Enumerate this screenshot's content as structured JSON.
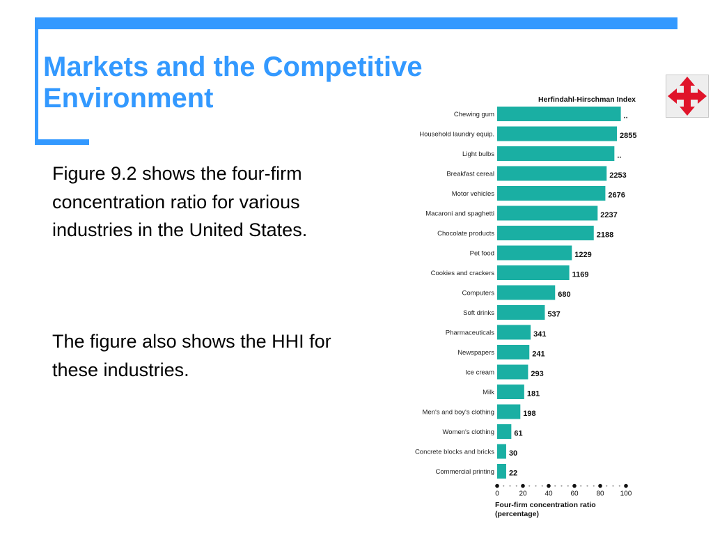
{
  "slide": {
    "title_line1": "Markets and the Competitive",
    "title_line2": "Environment",
    "paragraph1": "Figure 9.2 shows the four-firm concentration ratio for various industries in the United States.",
    "paragraph2": "The figure also shows the HHI for these industries.",
    "accent_color": "#3399ff",
    "nav_icon": "four-way-arrows-icon",
    "nav_icon_color": "#e0142a"
  },
  "chart_data": {
    "type": "bar",
    "orientation": "horizontal",
    "bar_color": "#1aafa3",
    "categories": [
      "Chewing gum",
      "Household laundry equip.",
      "Light bulbs",
      "Breakfast cereal",
      "Motor vehicles",
      "Macaroni and spaghetti",
      "Chocolate products",
      "Pet food",
      "Cookies and crackers",
      "Computers",
      "Soft drinks",
      "Pharmaceuticals",
      "Newspapers",
      "Ice cream",
      "Milk",
      "Men's and boy's clothing",
      "Women's clothing",
      "Concrete blocks and bricks",
      "Commercial printing"
    ],
    "values": [
      96,
      93,
      91,
      85,
      84,
      78,
      75,
      58,
      56,
      45,
      37,
      26,
      25,
      24,
      21,
      18,
      11,
      7,
      7
    ],
    "hhi_label": "Herfindahl-Hirschman Index",
    "hhi_values": [
      "..",
      "2855",
      "..",
      "2253",
      "2676",
      "2237",
      "2188",
      "1229",
      "1169",
      "680",
      "537",
      "341",
      "241",
      "293",
      "181",
      "198",
      "61",
      "30",
      "22"
    ],
    "x_ticks": [
      "0",
      "20",
      "40",
      "60",
      "80",
      "100"
    ],
    "xlim": [
      0,
      100
    ],
    "xlabel_line1": "Four-firm concentration ratio",
    "xlabel_line2": "(percentage)"
  }
}
